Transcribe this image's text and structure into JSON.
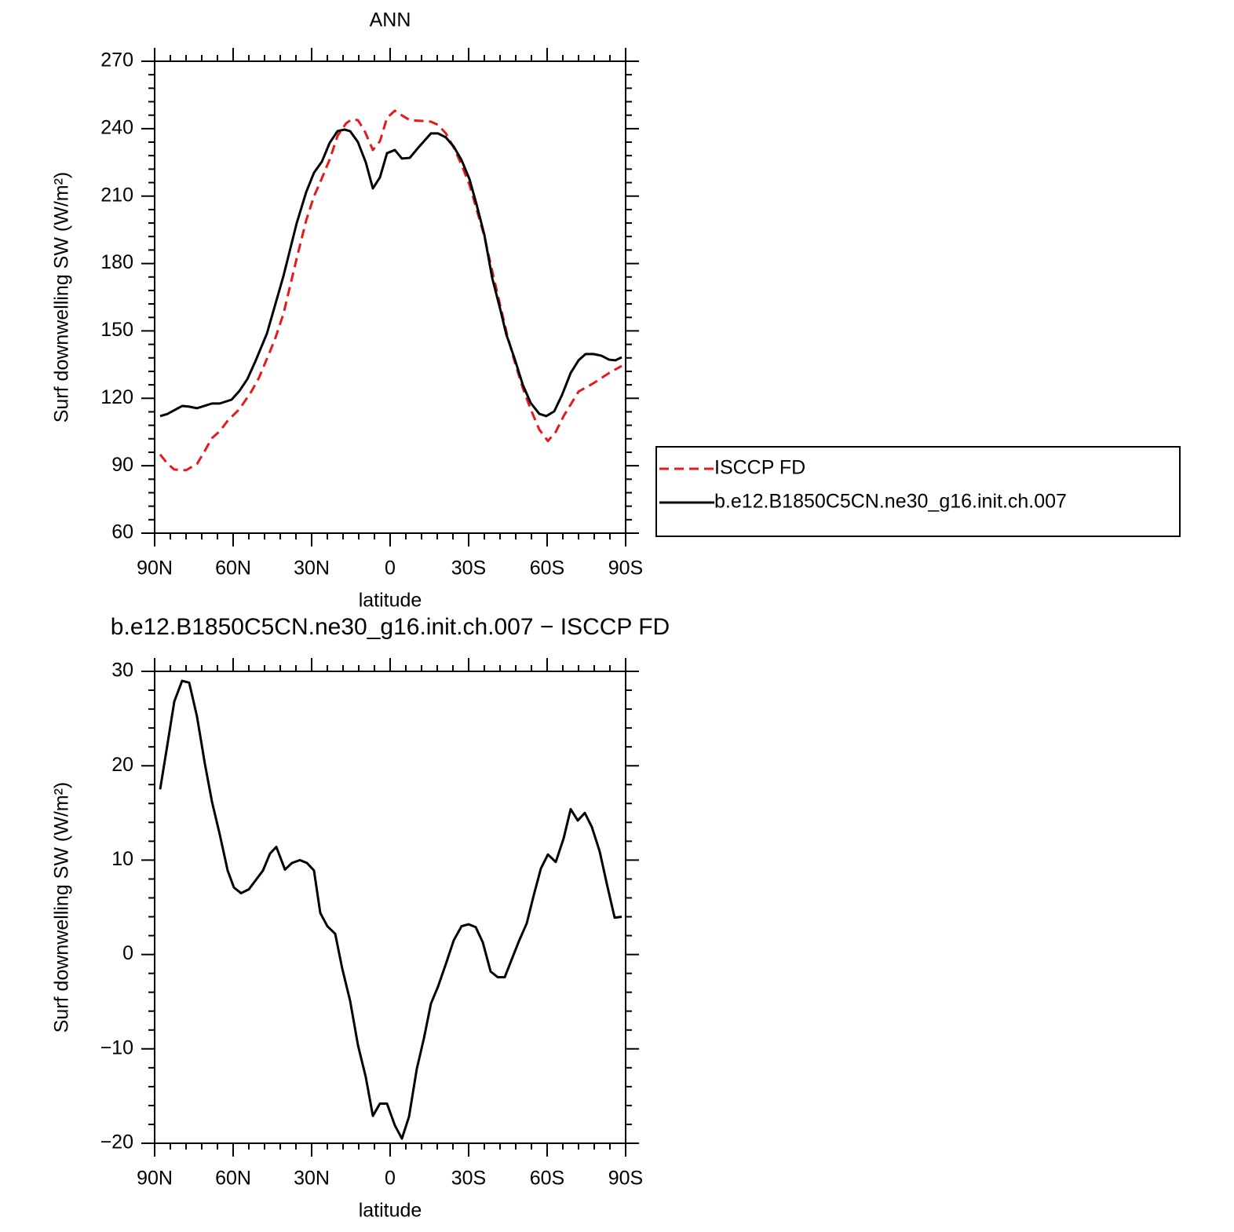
{
  "chart_data": [
    {
      "type": "line",
      "title": "ANN",
      "xlabel": "latitude",
      "ylabel": "Surf downwelling SW (W/m²)",
      "xlim": [
        90,
        -90
      ],
      "xticks": [
        {
          "value": 90,
          "label": "90N"
        },
        {
          "value": 60,
          "label": "60N"
        },
        {
          "value": 30,
          "label": "30N"
        },
        0,
        {
          "value": -30,
          "label": "30S"
        },
        {
          "value": -60,
          "label": "60S"
        },
        {
          "value": -90,
          "label": "90S"
        }
      ],
      "ylim": [
        60,
        270
      ],
      "yticks": [
        60,
        90,
        120,
        150,
        180,
        210,
        240,
        270
      ],
      "legend": "outside right",
      "series": [
        {
          "name": "ISCCP FD",
          "color": "#e41a1c",
          "line_style": "dashed",
          "x": [
            87.9,
            85.2,
            82.5,
            78,
            73.8,
            70.8,
            68.1,
            65.1,
            62.1,
            57.6,
            53.1,
            50.1,
            44.1,
            40.8,
            35.7,
            32.1,
            29.1,
            26.1,
            23.1,
            20.1,
            16.8,
            14.7,
            12.3,
            9.6,
            6.6,
            3.9,
            1.2,
            -1.8,
            -4.5,
            -7.5,
            -12.9,
            -15.6,
            -18.3,
            -21.3,
            -24.3,
            -27.3,
            -30.3,
            -33,
            -36,
            -39,
            -42,
            -44.7,
            -47.7,
            -50.7,
            -53.7,
            -57,
            -60.3,
            -63.3,
            -66.3,
            -72,
            -77.7,
            -83.7,
            -88.5
          ],
          "values": [
            95,
            91.1,
            88.3,
            88,
            90.8,
            96.7,
            102.3,
            105.4,
            110,
            115.2,
            122.9,
            129.2,
            146,
            157.5,
            182.3,
            199.1,
            209.9,
            217.9,
            226.3,
            236.8,
            242.4,
            244.1,
            243.8,
            238.6,
            230.5,
            234.4,
            244.8,
            248,
            245.9,
            243.8,
            243.4,
            243.1,
            241.7,
            237.9,
            231.6,
            223.9,
            215.1,
            204.3,
            192.1,
            176.7,
            161.7,
            148.4,
            135.8,
            124.6,
            115.2,
            106.1,
            101,
            105.1,
            112.1,
            123,
            126.7,
            131.3,
            134.4
          ]
        },
        {
          "name": "b.e12.B1850C5CN.ne30_g16.init.ch.007",
          "color": "#000000",
          "line_style": "solid",
          "x": [
            87.9,
            85.2,
            79.5,
            76.8,
            73.8,
            68.1,
            65.1,
            60.6,
            57.6,
            54.6,
            51.6,
            47.1,
            40.8,
            35.7,
            32.1,
            29.1,
            26.1,
            23.1,
            20.1,
            17.4,
            15.3,
            12.3,
            9.3,
            6.6,
            3.9,
            1.2,
            -1.8,
            -4.5,
            -7.5,
            -10.5,
            -15.6,
            -18.3,
            -21.3,
            -24.3,
            -27.3,
            -30.3,
            -33,
            -36,
            -39,
            -42,
            -44.4,
            -47.7,
            -50.7,
            -53.7,
            -57,
            -59.7,
            -62.7,
            -65.7,
            -69,
            -72,
            -74.7,
            -77.7,
            -80.7,
            -83.7,
            -86.1,
            -88.5
          ],
          "values": [
            112.1,
            113,
            116.6,
            116.3,
            115.6,
            117.7,
            117.7,
            119.4,
            123.3,
            128.5,
            136.2,
            148.8,
            174.3,
            198,
            211.7,
            220.4,
            225.3,
            233.7,
            238.9,
            239.6,
            238.9,
            234,
            225,
            213.4,
            218.3,
            229.1,
            230.5,
            226.7,
            227,
            231.2,
            237.9,
            237.9,
            236.1,
            232,
            226,
            217.6,
            206.4,
            192.8,
            173.6,
            160,
            148.4,
            137.2,
            126,
            118,
            113.1,
            112.1,
            114.2,
            121.5,
            131.3,
            136.9,
            139.7,
            139.7,
            139,
            137.2,
            136.9,
            138.3
          ]
        }
      ]
    },
    {
      "type": "line",
      "title": "b.e12.B1850C5CN.ne30_g16.init.ch.007 − ISCCP FD",
      "xlabel": "latitude",
      "ylabel": "Surf downwelling SW (W/m²)",
      "xlim": [
        90,
        -90
      ],
      "xticks": [
        {
          "value": 90,
          "label": "90N"
        },
        {
          "value": 60,
          "label": "60N"
        },
        {
          "value": 30,
          "label": "30N"
        },
        0,
        {
          "value": -30,
          "label": "30S"
        },
        {
          "value": -60,
          "label": "60S"
        },
        {
          "value": -90,
          "label": "90S"
        }
      ],
      "ylim": [
        -20,
        30
      ],
      "yticks": [
        {
          "value": -20,
          "label": "−20"
        },
        {
          "value": -10,
          "label": "−10"
        },
        0,
        10,
        20,
        30
      ],
      "series": [
        {
          "color": "#000000",
          "line_style": "solid",
          "x": [
            87.9,
            85.2,
            82.5,
            79.5,
            76.8,
            73.8,
            70.8,
            68.1,
            65.1,
            62.1,
            59.7,
            57,
            54,
            51.3,
            48.6,
            45.9,
            43.5,
            40.2,
            37.5,
            34.5,
            31.8,
            29.1,
            26.7,
            24,
            21,
            18.3,
            15.3,
            12.3,
            9.3,
            6.6,
            3.9,
            1.2,
            -1.8,
            -4.5,
            -7.2,
            -10.2,
            -12.9,
            -15.6,
            -18.3,
            -21.3,
            -24.3,
            -27.3,
            -30,
            -32.7,
            -35.4,
            -38.4,
            -41.1,
            -43.8,
            -46.5,
            -49.2,
            -52.2,
            -54.9,
            -57.6,
            -60.3,
            -63.3,
            -66.3,
            -69,
            -71.7,
            -74.4,
            -77.1,
            -80.1,
            -82.8,
            -85.8,
            -88.5
          ],
          "values": [
            17.5,
            22.1,
            26.8,
            29,
            28.8,
            25.2,
            20.2,
            16.2,
            12.7,
            8.9,
            7.1,
            6.5,
            6.9,
            7.9,
            8.9,
            10.7,
            11.4,
            9,
            9.7,
            10,
            9.7,
            8.9,
            4.4,
            3,
            2.2,
            -1.5,
            -4.9,
            -9.6,
            -13,
            -17.1,
            -15.8,
            -15.8,
            -18.1,
            -19.5,
            -17.2,
            -12.1,
            -8.9,
            -5.2,
            -3.4,
            -1,
            1.5,
            3,
            3.2,
            2.9,
            1.3,
            -1.8,
            -2.4,
            -2.4,
            -0.5,
            1.4,
            3.3,
            6.3,
            9.1,
            10.6,
            9.8,
            12.3,
            15.4,
            14.2,
            15,
            13.5,
            10.9,
            7.5,
            3.9,
            4
          ]
        }
      ]
    }
  ]
}
